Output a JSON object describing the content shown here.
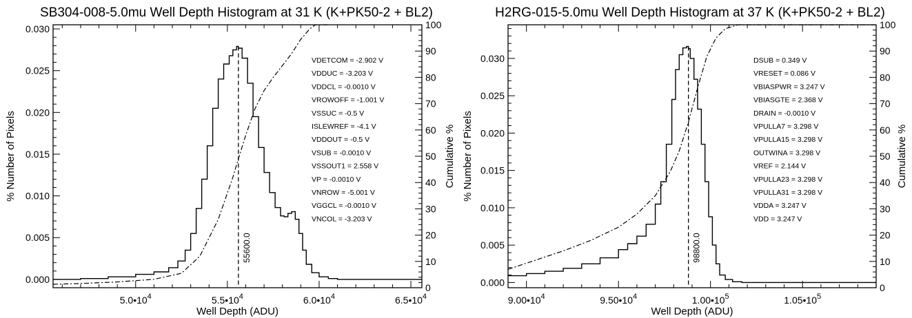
{
  "chart_data": [
    {
      "type": "line",
      "title": "SB304-008-5.0mu Well Depth Histogram at 31 K (K+PK50-2 + BL2)",
      "xlabel": "Well Depth (ADU)",
      "ylabel": "% Number of Pixels",
      "y2label": "Cumulative %",
      "xlim": [
        45500,
        65600
      ],
      "ylim": [
        -0.001,
        0.0305
      ],
      "y2lim": [
        0,
        100
      ],
      "x_ticks": [
        50000,
        55000,
        60000,
        65000
      ],
      "x_tick_labels": [
        {
          "mantissa": "5.0•10",
          "exp": "4"
        },
        {
          "mantissa": "5.5•10",
          "exp": "4"
        },
        {
          "mantissa": "6.0•10",
          "exp": "4"
        },
        {
          "mantissa": "6.5•10",
          "exp": "4"
        }
      ],
      "y_ticks": [
        0,
        0.005,
        0.01,
        0.015,
        0.02,
        0.025,
        0.03
      ],
      "y_tick_labels": [
        "0.000",
        "0.005",
        "0.010",
        "0.015",
        "0.020",
        "0.025",
        "0.030"
      ],
      "y2_ticks": [
        0,
        10,
        20,
        30,
        40,
        50,
        60,
        70,
        80,
        90,
        100
      ],
      "y2_tick_labels": [
        "0",
        "10",
        "20",
        "30",
        "40",
        "50",
        "60",
        "70",
        "80",
        "90",
        "100"
      ],
      "grid": false,
      "median_line": {
        "x": 55600,
        "label": "55600.0"
      },
      "series": [
        {
          "style": "histogram-step",
          "axis": "left",
          "x": [
            45500,
            47000,
            48500,
            50000,
            51000,
            51800,
            52300,
            52700,
            53000,
            53300,
            53600,
            53900,
            54200,
            54500,
            54800,
            55100,
            55300,
            55500,
            55600,
            55800,
            56100,
            56400,
            56700,
            57000,
            57300,
            57600,
            57900,
            58100,
            58300,
            58500,
            58700,
            58900,
            59100,
            59300,
            59600,
            60000,
            60500,
            61000,
            65600
          ],
          "y": [
            0.0,
            0.0001,
            0.0003,
            0.0006,
            0.0009,
            0.0014,
            0.0022,
            0.0035,
            0.0055,
            0.0085,
            0.012,
            0.016,
            0.0205,
            0.024,
            0.0258,
            0.0268,
            0.0275,
            0.0279,
            0.0277,
            0.0265,
            0.0235,
            0.0195,
            0.0158,
            0.0128,
            0.0104,
            0.0086,
            0.0076,
            0.0075,
            0.0079,
            0.0081,
            0.0072,
            0.0055,
            0.0035,
            0.0018,
            0.0008,
            0.0003,
            0.0001,
            0.0,
            0.0
          ]
        },
        {
          "style": "dash-dot",
          "axis": "right",
          "x": [
            45500,
            47000,
            49000,
            51000,
            52500,
            53500,
            54500,
            55300,
            55600,
            56000,
            56500,
            57000,
            57500,
            58000,
            58500,
            59000,
            59500,
            59800,
            60000,
            60500
          ],
          "y": [
            1.3,
            1.6,
            2.2,
            3.2,
            5.5,
            12,
            26,
            42,
            49,
            58,
            68,
            75,
            80,
            84.5,
            89,
            94.5,
            98.5,
            100,
            100,
            100
          ]
        }
      ],
      "annotations": [
        "VDETCOM = -2.902 V",
        "VDDUC = -3.203 V",
        "VDDCL = -0.0010 V",
        "VROWOFF = -1.001 V",
        "VSSUC = -0.5 V",
        "ISLEWREF = -4.1 V",
        "VDDOUT = -0.5 V",
        "VSUB = -0.0010 V",
        "VSSOUT1 = 2.558 V",
        "VP = -0.0010 V",
        "VNROW = -5.001 V",
        "VGGCL = -0.0010 V",
        "VNCOL = -3.203 V"
      ]
    },
    {
      "type": "line",
      "title": "H2RG-015-5.0mu Well Depth Histogram at 37 K (K+PK50-2 + BL2)",
      "xlabel": "Well Depth (ADU)",
      "ylabel": "% Number of Pixels",
      "y2label": "Cumulative %",
      "xlim": [
        89000,
        109000
      ],
      "ylim": [
        -0.0007,
        0.0345
      ],
      "y2lim": [
        0,
        100
      ],
      "x_ticks": [
        90000,
        95000,
        100000,
        105000
      ],
      "x_tick_labels": [
        {
          "mantissa": "9.00•10",
          "exp": "4"
        },
        {
          "mantissa": "9.50•10",
          "exp": "4"
        },
        {
          "mantissa": "1.00•10",
          "exp": "5"
        },
        {
          "mantissa": "1.05•10",
          "exp": "5"
        }
      ],
      "y_ticks": [
        0,
        0.005,
        0.01,
        0.015,
        0.02,
        0.025,
        0.03
      ],
      "y_tick_labels": [
        "0.000",
        "0.005",
        "0.010",
        "0.015",
        "0.020",
        "0.025",
        "0.030"
      ],
      "y2_ticks": [
        0,
        10,
        20,
        30,
        40,
        50,
        60,
        70,
        80,
        90,
        100
      ],
      "y2_tick_labels": [
        "0",
        "10",
        "20",
        "30",
        "40",
        "50",
        "60",
        "70",
        "80",
        "90",
        "100"
      ],
      "grid": false,
      "median_line": {
        "x": 98800,
        "label": "98800.0"
      },
      "series": [
        {
          "style": "histogram-step",
          "axis": "left",
          "x": [
            89000,
            90000,
            91000,
            92000,
            93000,
            94000,
            95000,
            95500,
            96000,
            96500,
            97000,
            97300,
            97600,
            97900,
            98100,
            98300,
            98500,
            98700,
            98800,
            98900,
            99100,
            99300,
            99500,
            99700,
            99900,
            100100,
            100300,
            100500,
            100800,
            101200,
            101700,
            109000
          ],
          "y": [
            0.0009,
            0.0012,
            0.0015,
            0.0019,
            0.0025,
            0.0033,
            0.0044,
            0.0052,
            0.0062,
            0.0078,
            0.0105,
            0.0135,
            0.0185,
            0.0245,
            0.0285,
            0.0305,
            0.0314,
            0.0316,
            0.0313,
            0.03,
            0.0272,
            0.0232,
            0.0185,
            0.0135,
            0.0088,
            0.005,
            0.0025,
            0.001,
            0.0004,
            0.0001,
            0.0,
            0.0
          ]
        },
        {
          "style": "dash-dot",
          "axis": "right",
          "x": [
            89000,
            90500,
            92000,
            93500,
            95000,
            96000,
            97000,
            97800,
            98300,
            98800,
            99300,
            99800,
            100300,
            100800,
            101500,
            103000,
            109000
          ],
          "y": [
            7,
            10.5,
            14,
            18,
            23,
            28,
            35,
            44,
            52,
            63,
            76,
            88,
            95,
            98.5,
            100,
            100,
            100
          ]
        }
      ],
      "annotations": [
        "DSUB = 0.349 V",
        "VRESET = 0.086 V",
        "VBIASPWR = 3.247 V",
        "VBIASGTE = 2.368 V",
        "DRAIN = -0.0010 V",
        "VPULLA7 = 3.298 V",
        "VPULLA15 = 3.298 V",
        "OUTWINA = 3.298 V",
        "VREF = 2.144 V",
        "VPULLA23 = 3.298 V",
        "VPULLA31 = 3.298 V",
        "VDDA = 3.247 V",
        "VDD = 3.247 V"
      ]
    }
  ]
}
